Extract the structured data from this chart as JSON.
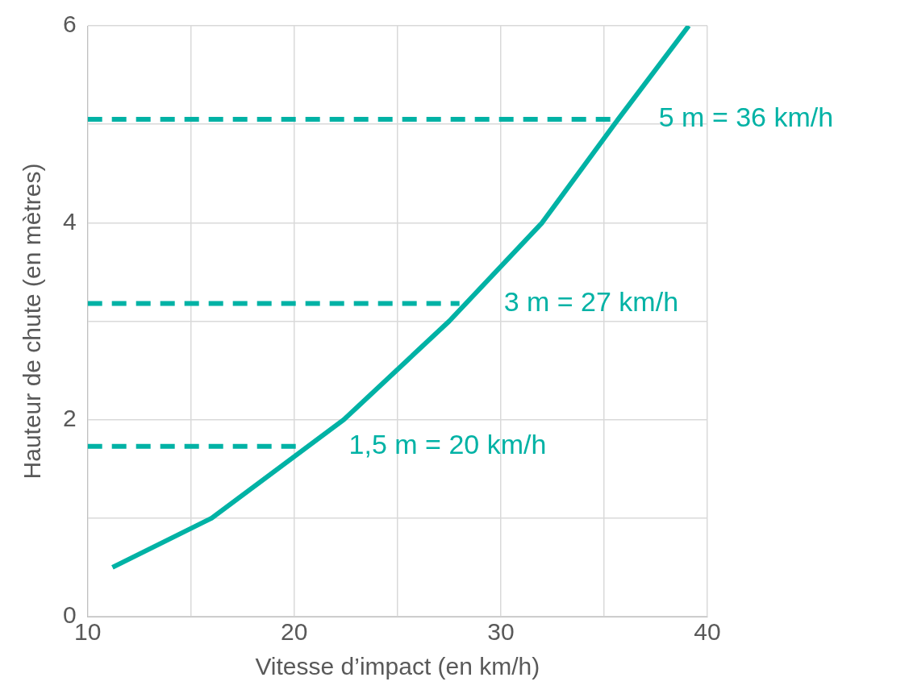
{
  "chart_data": {
    "type": "line",
    "xlabel": "Vitesse d’impact (en km/h)",
    "ylabel": "Hauteur de chute (en mètres)",
    "series": [
      {
        "color": "#00b2a5",
        "x": [
          11.2,
          16,
          22.4,
          27.5,
          32,
          35.5,
          39.1
        ],
        "values": [
          0.5,
          1,
          2,
          3,
          4,
          5,
          6
        ]
      },
      {
        "color": "#00b2a5",
        "line_style": "dashed",
        "x": [
          10,
          20.5
        ],
        "values": [
          1.73,
          1.73
        ]
      },
      {
        "color": "#00b2a5",
        "line_style": "dashed",
        "x": [
          10,
          28
        ],
        "values": [
          3.18,
          3.18
        ]
      },
      {
        "color": "#00b2a5",
        "line_style": "dashed",
        "x": [
          10,
          35.5
        ],
        "values": [
          5.05,
          5.05
        ]
      }
    ],
    "annotations": [
      {
        "text": "1,5 m = 20 km/h",
        "x": 20.5,
        "y": 1.73
      },
      {
        "text": "3 m = 27 km/h",
        "x": 28,
        "y": 3.18
      },
      {
        "text": "5 m = 36 km/h",
        "x": 35.5,
        "y": 5.05
      }
    ],
    "xlim": [
      10,
      40
    ],
    "xticks": [
      10,
      {
        "value": 15,
        "label": null
      },
      20,
      {
        "value": 25,
        "label": null
      },
      30,
      {
        "value": 35,
        "label": null
      },
      40
    ],
    "ylim": [
      0,
      6
    ],
    "yticks": [
      0,
      {
        "value": 1,
        "label": null
      },
      2,
      {
        "value": 3,
        "label": null
      },
      4,
      {
        "value": 5,
        "label": null
      },
      6
    ],
    "grid": true,
    "legend": false,
    "marker": "none"
  }
}
